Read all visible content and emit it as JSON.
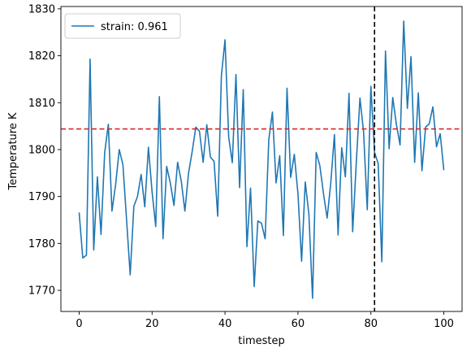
{
  "chart_data": {
    "type": "line",
    "title": "",
    "xlabel": "timestep",
    "ylabel": "Temperature K",
    "xlim": [
      -5,
      105
    ],
    "ylim": [
      1765.5,
      1830.5
    ],
    "x_ticks": [
      0,
      20,
      40,
      60,
      80,
      100
    ],
    "y_ticks": [
      1770,
      1780,
      1790,
      1800,
      1810,
      1820,
      1830
    ],
    "grid": false,
    "legend": {
      "placement": "top-left"
    },
    "series": [
      {
        "name": "strain: 0.961",
        "color": "#1f77b4",
        "x": [
          0,
          1,
          2,
          3,
          4,
          5,
          6,
          7,
          8,
          9,
          10,
          11,
          12,
          13,
          14,
          15,
          16,
          17,
          18,
          19,
          20,
          21,
          22,
          23,
          24,
          25,
          26,
          27,
          28,
          29,
          30,
          31,
          32,
          33,
          34,
          35,
          36,
          37,
          38,
          39,
          40,
          41,
          42,
          43,
          44,
          45,
          46,
          47,
          48,
          49,
          50,
          51,
          52,
          53,
          54,
          55,
          56,
          57,
          58,
          59,
          60,
          61,
          62,
          63,
          64,
          65,
          66,
          67,
          68,
          69,
          70,
          71,
          72,
          73,
          74,
          75,
          76,
          77,
          78,
          79,
          80,
          81,
          82,
          83,
          84,
          85,
          86,
          87,
          88,
          89,
          90,
          91,
          92,
          93,
          94,
          95,
          96,
          97,
          98,
          99,
          100
        ],
        "y": [
          1786.6,
          1776.9,
          1777.5,
          1819.3,
          1778.6,
          1794.2,
          1781.9,
          1799.3,
          1805.4,
          1786.9,
          1792.5,
          1800.0,
          1796.8,
          1785.1,
          1773.3,
          1787.9,
          1790.0,
          1794.7,
          1787.8,
          1800.5,
          1791.0,
          1783.6,
          1811.3,
          1781.0,
          1796.4,
          1792.9,
          1788.1,
          1797.3,
          1793.3,
          1786.9,
          1795.0,
          1799.6,
          1804.8,
          1803.9,
          1797.3,
          1805.3,
          1798.4,
          1797.5,
          1785.8,
          1815.7,
          1823.4,
          1802.7,
          1797.2,
          1816.0,
          1791.9,
          1812.8,
          1779.3,
          1791.8,
          1770.8,
          1784.8,
          1784.3,
          1781.0,
          1802.1,
          1808.0,
          1792.9,
          1798.7,
          1781.7,
          1813.1,
          1794.1,
          1799.0,
          1790.6,
          1776.2,
          1793.1,
          1786.2,
          1768.3,
          1799.4,
          1796.6,
          1790.6,
          1785.4,
          1792.9,
          1803.2,
          1781.8,
          1800.4,
          1794.2,
          1812.0,
          1782.5,
          1797.3,
          1811.0,
          1803.7,
          1787.2,
          1813.5,
          1799.4,
          1797.0,
          1776.1,
          1821.0,
          1800.2,
          1811.1,
          1805.3,
          1801.0,
          1827.4,
          1808.8,
          1819.8,
          1797.3,
          1812.1,
          1795.5,
          1804.8,
          1805.5,
          1809.1,
          1800.6,
          1803.4,
          1795.6
        ]
      }
    ],
    "reference_lines": [
      {
        "orientation": "horizontal",
        "value": 1804.4,
        "color": "#d62728",
        "style": "dashed"
      },
      {
        "orientation": "vertical",
        "value": 81,
        "color": "#000000",
        "style": "dashed"
      }
    ]
  }
}
